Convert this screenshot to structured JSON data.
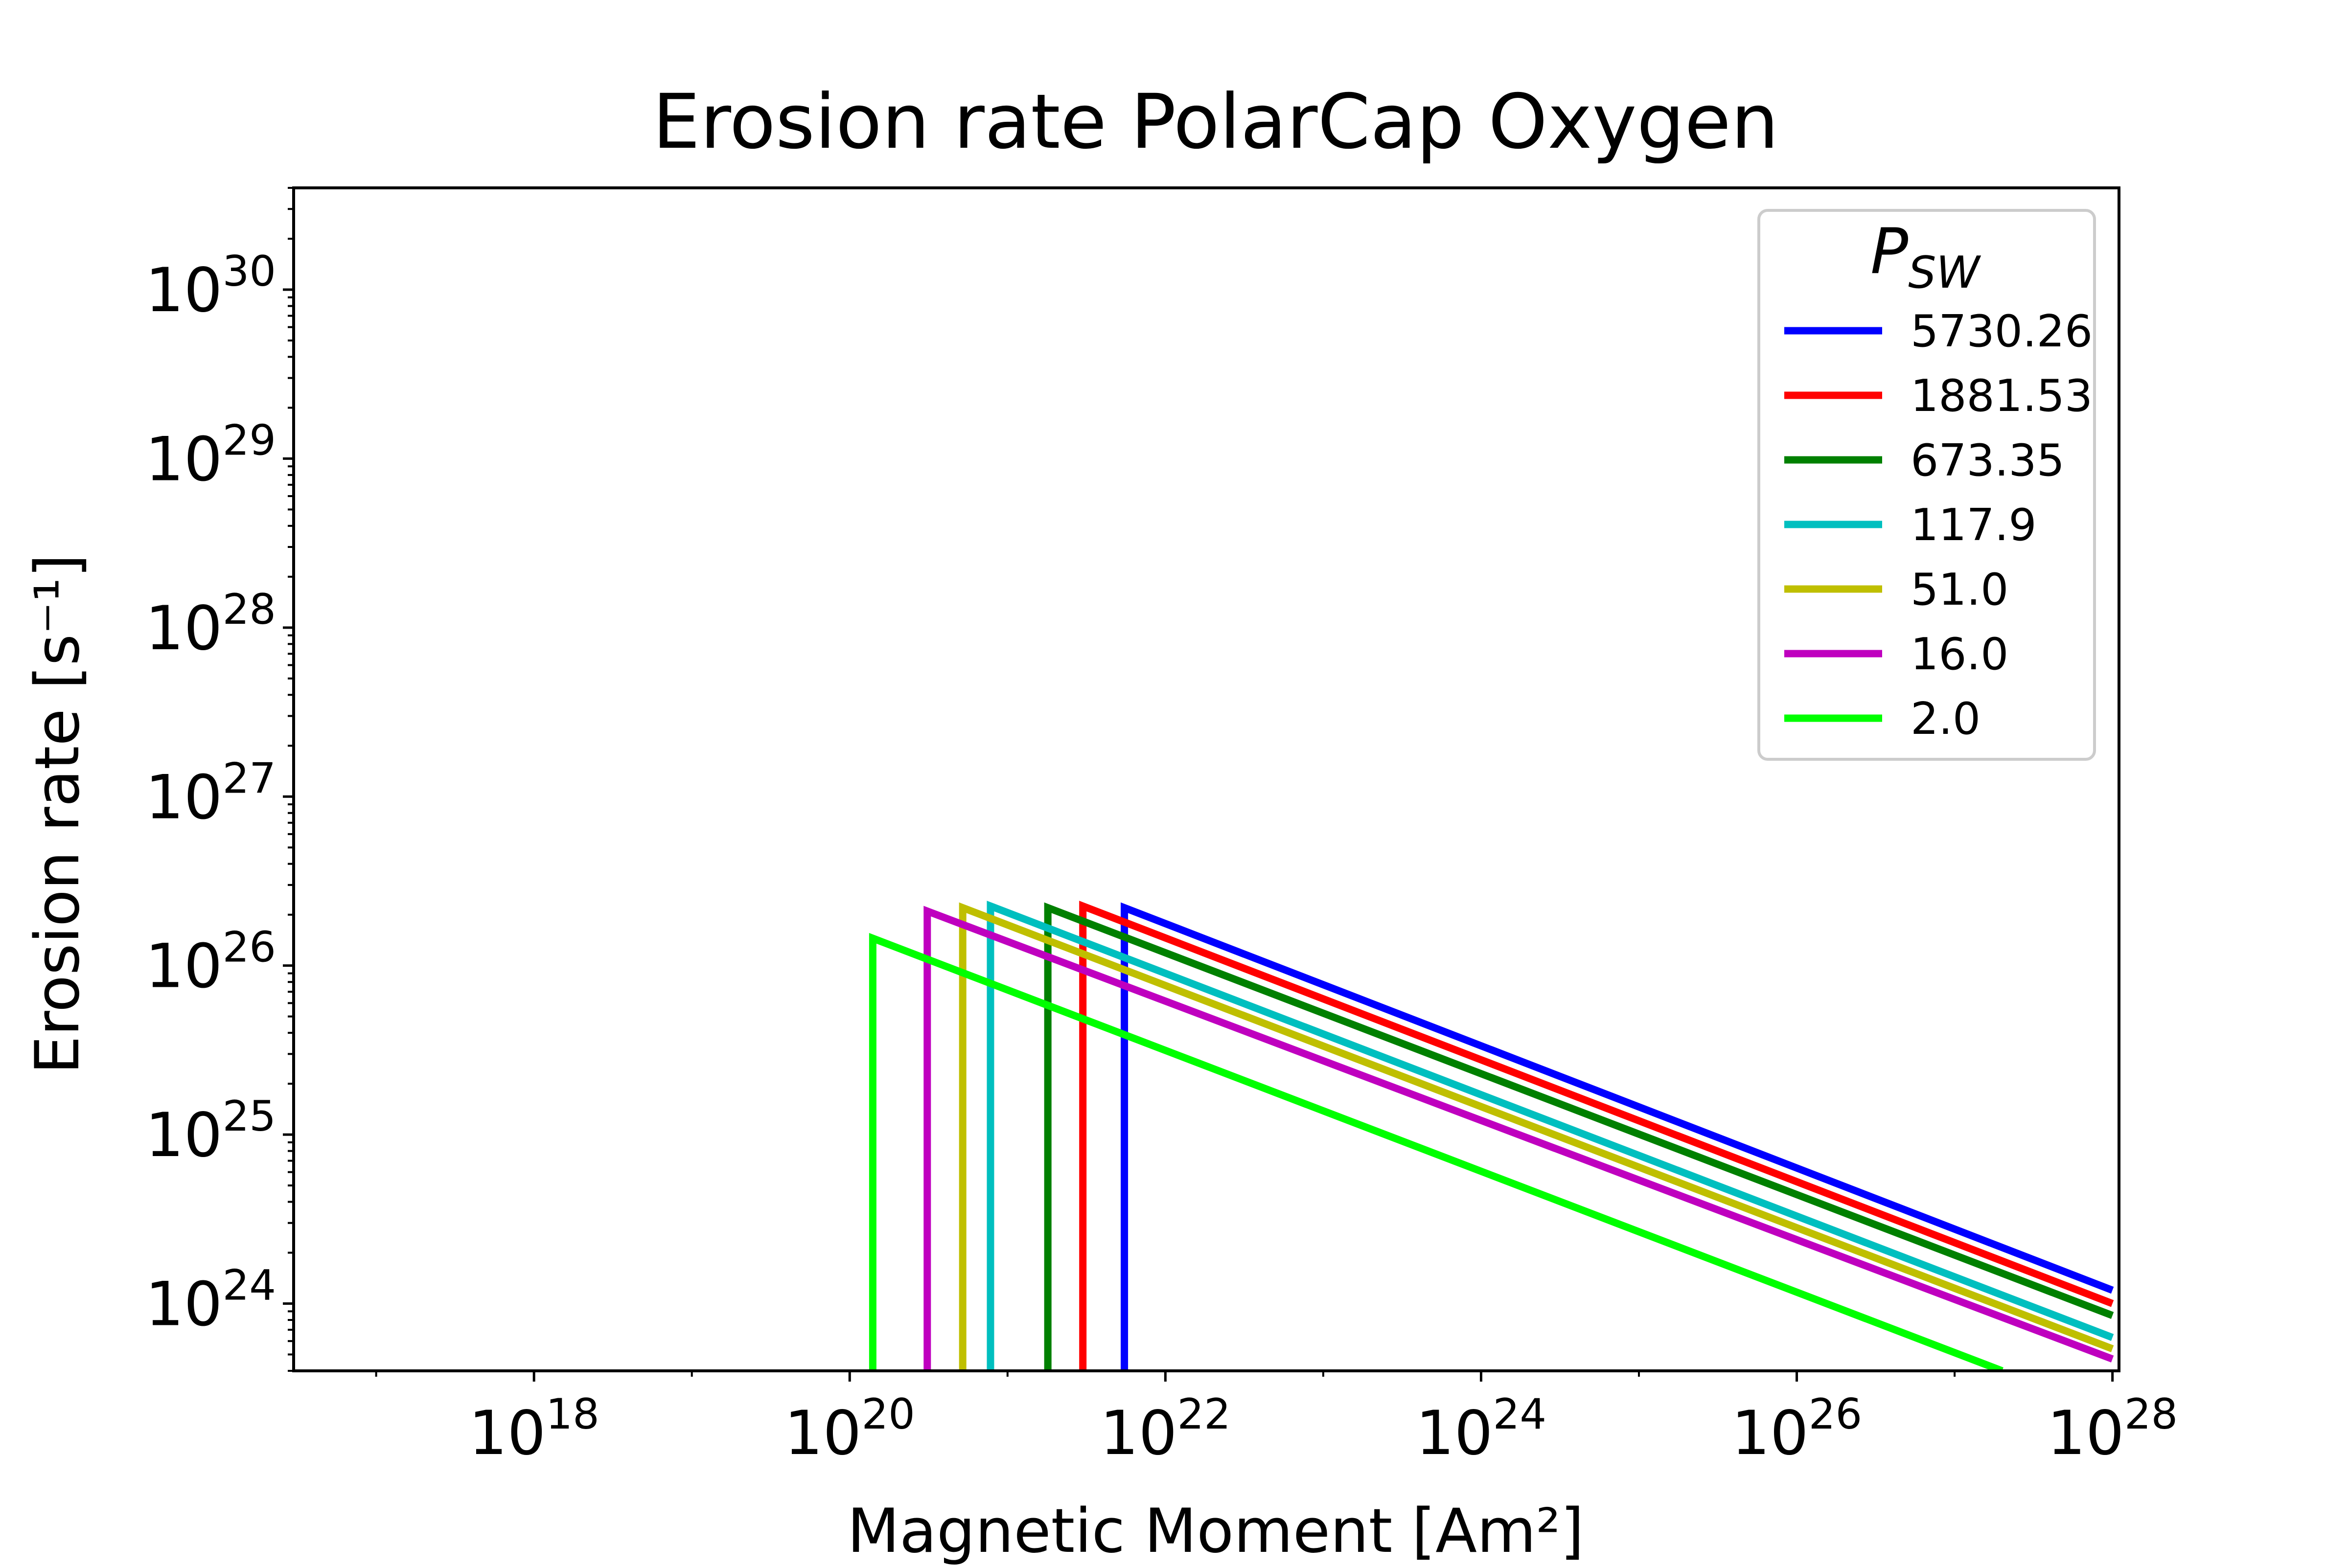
{
  "chart_data": {
    "type": "line",
    "title": "Erosion rate PolarCap Oxygen",
    "xlabel": "Magnetic Moment [Am²]",
    "ylabel": "Erosion rate [s⁻¹]",
    "xscale": "log",
    "yscale": "log",
    "xlim": [
      3e+16,
      1.1e+28
    ],
    "ylim": [
      4e+23,
      4e+30
    ],
    "x_ticks": [
      {
        "base": "10",
        "exp": "18",
        "value": 1e+18
      },
      {
        "base": "10",
        "exp": "20",
        "value": 1e+20
      },
      {
        "base": "10",
        "exp": "22",
        "value": 1e+22
      },
      {
        "base": "10",
        "exp": "24",
        "value": 1e+24
      },
      {
        "base": "10",
        "exp": "26",
        "value": 1e+26
      },
      {
        "base": "10",
        "exp": "28",
        "value": 1e+28
      }
    ],
    "y_ticks": [
      {
        "base": "10",
        "exp": "24",
        "value": 1e+24
      },
      {
        "base": "10",
        "exp": "25",
        "value": 1e+25
      },
      {
        "base": "10",
        "exp": "26",
        "value": 1e+26
      },
      {
        "base": "10",
        "exp": "27",
        "value": 1e+27
      },
      {
        "base": "10",
        "exp": "28",
        "value": 1e+28
      },
      {
        "base": "10",
        "exp": "29",
        "value": 1e+29
      },
      {
        "base": "10",
        "exp": "30",
        "value": 1e+30
      }
    ],
    "grid": false,
    "legend": {
      "title_base": "P",
      "title_sub": "SW",
      "position": "top-right"
    },
    "series": [
      {
        "name": "5730.26",
        "color": "#0000ff",
        "x": [
          5.5e+21,
          5.5e+21,
          1e+28
        ],
        "y": [
          4e+23,
          2.2e+26,
          1.2e+24
        ]
      },
      {
        "name": "1881.53",
        "color": "#ff0000",
        "x": [
          3e+21,
          3e+21,
          1e+28
        ],
        "y": [
          4e+23,
          2.25e+26,
          1e+24
        ]
      },
      {
        "name": "673.35",
        "color": "#008000",
        "x": [
          1.8e+21,
          1.8e+21,
          1e+28
        ],
        "y": [
          4e+23,
          2.2e+26,
          8.5e+23
        ]
      },
      {
        "name": "117.9",
        "color": "#00bfbf",
        "x": [
          7.8e+20,
          7.8e+20,
          1e+28
        ],
        "y": [
          4e+23,
          2.25e+26,
          6.3e+23
        ]
      },
      {
        "name": "51.0",
        "color": "#bfbf00",
        "x": [
          5.2e+20,
          5.2e+20,
          1e+28
        ],
        "y": [
          4e+23,
          2.2e+26,
          5.4e+23
        ]
      },
      {
        "name": "16.0",
        "color": "#bf00bf",
        "x": [
          3.1e+20,
          3.1e+20,
          1e+28
        ],
        "y": [
          4e+23,
          2.1e+26,
          4.7e+23
        ]
      },
      {
        "name": "2.0",
        "color": "#00ff00",
        "x": [
          1.4e+20,
          1.4e+20,
          2e+27
        ],
        "y": [
          4e+23,
          1.45e+26,
          4e+23
        ]
      }
    ]
  }
}
